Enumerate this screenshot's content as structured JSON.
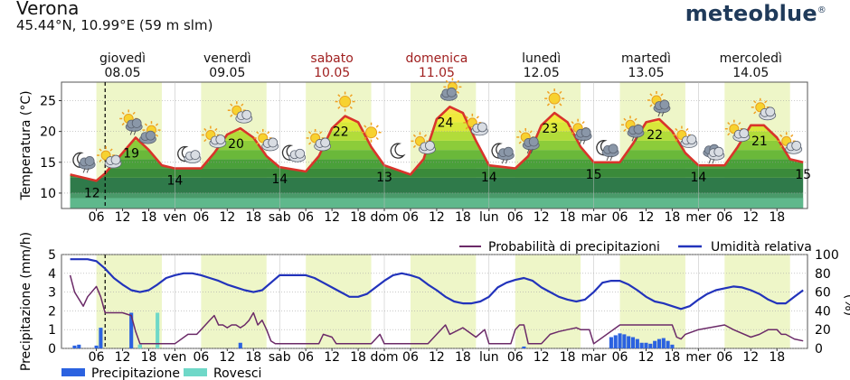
{
  "header": {
    "city": "Verona",
    "coords": "45.44°N, 10.99°E (59 m slm)",
    "brand": "meteoblue",
    "brand_mark": "®"
  },
  "colors": {
    "temp_line": "#d9342b",
    "precip_prob": "#6b2a68",
    "humidity": "#2233bb",
    "precip_bar": "#2b62e0",
    "showers_bar": "#6fd8c8",
    "day_shade": "#eef6c8",
    "weekend_text": "#a02020"
  },
  "days": [
    {
      "name": "giovedì",
      "date": "08.05",
      "weekend": false
    },
    {
      "name": "venerdì",
      "date": "09.05",
      "weekend": false
    },
    {
      "name": "sabato",
      "date": "10.05",
      "weekend": true
    },
    {
      "name": "domenica",
      "date": "11.05",
      "weekend": true
    },
    {
      "name": "lunedì",
      "date": "12.05",
      "weekend": false
    },
    {
      "name": "martedì",
      "date": "13.05",
      "weekend": false
    },
    {
      "name": "mercoledì",
      "date": "14.05",
      "weekend": false
    }
  ],
  "xticks": [
    "06",
    "12",
    "18",
    "ven",
    "06",
    "12",
    "18",
    "sab",
    "06",
    "12",
    "18",
    "dom",
    "06",
    "12",
    "18",
    "lun",
    "06",
    "12",
    "18",
    "mar",
    "06",
    "12",
    "18",
    "mer",
    "06",
    "12",
    "18"
  ],
  "chart_data": [
    {
      "type": "line",
      "ylabel": "Temperatura (°C)",
      "ylim": [
        7.5,
        28
      ],
      "yticks": [
        10,
        15,
        20,
        25
      ],
      "x_hours": [
        0,
        6,
        8,
        12,
        15,
        18,
        21,
        24,
        30,
        33,
        36,
        39,
        42,
        45,
        48,
        54,
        57,
        60,
        63,
        66,
        69,
        72,
        78,
        81,
        84,
        87,
        90,
        93,
        96,
        102,
        105,
        108,
        111,
        114,
        117,
        120,
        126,
        129,
        132,
        135,
        138,
        141,
        144,
        150,
        153,
        156,
        159,
        162,
        165,
        168
      ],
      "temperature": [
        13,
        12,
        13.2,
        16.5,
        19,
        17,
        14.5,
        14,
        14,
        16.5,
        19.5,
        20.5,
        19,
        16,
        14.2,
        13.5,
        16,
        20.5,
        22.5,
        21.5,
        17.5,
        14.5,
        13,
        15.5,
        22,
        24,
        23,
        18.5,
        14.5,
        14,
        16,
        21,
        23,
        21.5,
        17.5,
        15,
        15,
        18,
        21.5,
        22,
        20,
        16.5,
        14.5,
        14.5,
        17.5,
        21,
        21,
        19,
        15.5,
        15
      ],
      "labels": [
        {
          "text": "12",
          "hour": 5
        },
        {
          "text": "19",
          "hour": 14
        },
        {
          "text": "14",
          "hour": 24
        },
        {
          "text": "20",
          "hour": 38
        },
        {
          "text": "14",
          "hour": 48
        },
        {
          "text": "22",
          "hour": 62
        },
        {
          "text": "13",
          "hour": 72
        },
        {
          "text": "24",
          "hour": 86
        },
        {
          "text": "14",
          "hour": 96
        },
        {
          "text": "23",
          "hour": 110
        },
        {
          "text": "15",
          "hour": 120
        },
        {
          "text": "22",
          "hour": 134
        },
        {
          "text": "14",
          "hour": 144
        },
        {
          "text": "21",
          "hour": 158
        },
        {
          "text": "15",
          "hour": 168
        }
      ],
      "icons": [
        {
          "hour": 3,
          "icon": "moon-rain-icon"
        },
        {
          "hour": 9,
          "icon": "sun-cloud-icon"
        },
        {
          "hour": 14,
          "icon": "sun-cloud-rain-icon"
        },
        {
          "hour": 18,
          "icon": "cloud-sun-icon"
        },
        {
          "hour": 27,
          "icon": "moon-cloud-icon"
        },
        {
          "hour": 33,
          "icon": "sun-cloud-icon"
        },
        {
          "hour": 39,
          "icon": "sun-cloud-icon"
        },
        {
          "hour": 45,
          "icon": "sun-cloud-icon"
        },
        {
          "hour": 51,
          "icon": "moon-cloud-icon"
        },
        {
          "hour": 57,
          "icon": "sun-cloud-icon"
        },
        {
          "hour": 63,
          "icon": "sun-icon"
        },
        {
          "hour": 69,
          "icon": "sun-icon"
        },
        {
          "hour": 75,
          "icon": "moon-icon"
        },
        {
          "hour": 81,
          "icon": "sun-cloud-icon"
        },
        {
          "hour": 87,
          "icon": "cloud-sun-icon"
        },
        {
          "hour": 93,
          "icon": "sun-cloud-icon"
        },
        {
          "hour": 99,
          "icon": "moon-rain-icon"
        },
        {
          "hour": 105,
          "icon": "sun-cloud-rain-icon"
        },
        {
          "hour": 111,
          "icon": "sun-icon"
        },
        {
          "hour": 117,
          "icon": "sun-cloud-rain-icon"
        },
        {
          "hour": 123,
          "icon": "moon-rain-icon"
        },
        {
          "hour": 129,
          "icon": "sun-cloud-rain-icon"
        },
        {
          "hour": 135,
          "icon": "sun-cloud-rain-icon"
        },
        {
          "hour": 141,
          "icon": "sun-cloud-icon"
        },
        {
          "hour": 147,
          "icon": "cloud-rain-icon"
        },
        {
          "hour": 153,
          "icon": "sun-cloud-icon"
        },
        {
          "hour": 159,
          "icon": "sun-cloud-icon"
        },
        {
          "hour": 165,
          "icon": "sun-cloud-icon"
        }
      ]
    },
    {
      "type": "line",
      "ylabel": "Precipitazione (mm/h)",
      "ylabel_right": "(%)",
      "ylim": [
        0,
        5
      ],
      "yticks": [
        0,
        1,
        2,
        3,
        4,
        5
      ],
      "yticks_right": [
        0,
        20,
        40,
        60,
        80,
        100
      ],
      "series": [
        {
          "name": "Probabilità di precipitazioni",
          "x_hours": [
            0,
            1,
            3,
            4,
            6,
            7,
            8,
            9,
            10,
            12,
            14,
            15,
            16,
            17,
            18,
            24,
            27,
            29,
            30,
            32,
            33,
            34,
            35,
            36,
            37,
            38,
            39,
            40,
            41,
            42,
            43,
            44,
            45,
            46,
            47,
            48,
            54,
            57,
            58,
            60,
            61,
            66,
            69,
            70,
            71,
            72,
            78,
            81,
            82,
            84,
            85,
            86,
            87,
            90,
            93,
            95,
            96,
            97,
            101,
            102,
            103,
            104,
            105,
            106,
            107,
            108,
            110,
            112,
            114,
            116,
            117,
            119,
            120,
            126,
            127,
            129,
            130,
            132,
            133,
            135,
            136,
            138,
            139,
            140,
            141,
            144,
            150,
            152,
            156,
            158,
            160,
            162,
            163,
            164,
            166,
            168
          ],
          "values": [
            78,
            60,
            45,
            55,
            66,
            55,
            38,
            38,
            38,
            38,
            35,
            18,
            5,
            5,
            5,
            5,
            15,
            15,
            20,
            30,
            35,
            25,
            25,
            22,
            25,
            25,
            22,
            25,
            30,
            38,
            25,
            30,
            20,
            8,
            5,
            5,
            5,
            5,
            15,
            12,
            5,
            5,
            5,
            10,
            15,
            5,
            5,
            5,
            5,
            15,
            20,
            25,
            15,
            22,
            12,
            20,
            5,
            5,
            5,
            20,
            25,
            25,
            5,
            5,
            5,
            5,
            15,
            18,
            20,
            22,
            20,
            20,
            5,
            25,
            25,
            25,
            25,
            25,
            25,
            25,
            25,
            25,
            12,
            10,
            15,
            20,
            25,
            20,
            12,
            15,
            20,
            20,
            15,
            15,
            10,
            8
          ],
          "color": "#6b2a68"
        },
        {
          "name": "Umidità relativa",
          "x_hours": [
            0,
            4,
            6,
            8,
            10,
            12,
            14,
            16,
            18,
            20,
            22,
            24,
            26,
            28,
            30,
            32,
            34,
            36,
            38,
            40,
            42,
            44,
            46,
            48,
            50,
            52,
            54,
            56,
            58,
            60,
            62,
            64,
            66,
            68,
            70,
            72,
            74,
            76,
            78,
            80,
            82,
            84,
            86,
            88,
            90,
            92,
            94,
            96,
            98,
            100,
            102,
            104,
            106,
            108,
            110,
            112,
            114,
            116,
            118,
            120,
            122,
            124,
            126,
            128,
            130,
            132,
            134,
            136,
            138,
            140,
            142,
            144,
            146,
            148,
            150,
            152,
            154,
            156,
            158,
            160,
            162,
            164,
            166,
            168
          ],
          "values": [
            95,
            95,
            93,
            85,
            75,
            68,
            62,
            60,
            62,
            68,
            75,
            78,
            80,
            80,
            78,
            75,
            72,
            68,
            65,
            62,
            60,
            62,
            70,
            78,
            78,
            78,
            78,
            75,
            70,
            65,
            60,
            55,
            55,
            58,
            65,
            72,
            78,
            80,
            78,
            75,
            68,
            62,
            55,
            50,
            48,
            48,
            50,
            55,
            65,
            70,
            73,
            75,
            72,
            65,
            60,
            55,
            52,
            50,
            52,
            60,
            70,
            72,
            72,
            68,
            62,
            55,
            50,
            48,
            45,
            42,
            45,
            52,
            58,
            62,
            64,
            66,
            65,
            62,
            58,
            52,
            48,
            48,
            55,
            62
          ],
          "color": "#2233bb"
        },
        {
          "name": "Precipitazione",
          "type": "bar",
          "x_hours": [
            1,
            2,
            6,
            7,
            14,
            16,
            39,
            104,
            124,
            125,
            126,
            127,
            128,
            129,
            130,
            131,
            132,
            133,
            134,
            135,
            136,
            137,
            138
          ],
          "values": [
            0.15,
            0.2,
            0.15,
            1.1,
            1.9,
            0.2,
            0.3,
            0.1,
            0.6,
            0.7,
            0.8,
            0.75,
            0.65,
            0.6,
            0.5,
            0.3,
            0.3,
            0.25,
            0.4,
            0.5,
            0.55,
            0.4,
            0.2
          ],
          "color": "#2b62e0"
        },
        {
          "name": "Rovesci",
          "type": "bar",
          "x_hours": [
            16,
            20
          ],
          "values": [
            0.2,
            1.9
          ],
          "color": "#6fd8c8"
        }
      ]
    }
  ]
}
